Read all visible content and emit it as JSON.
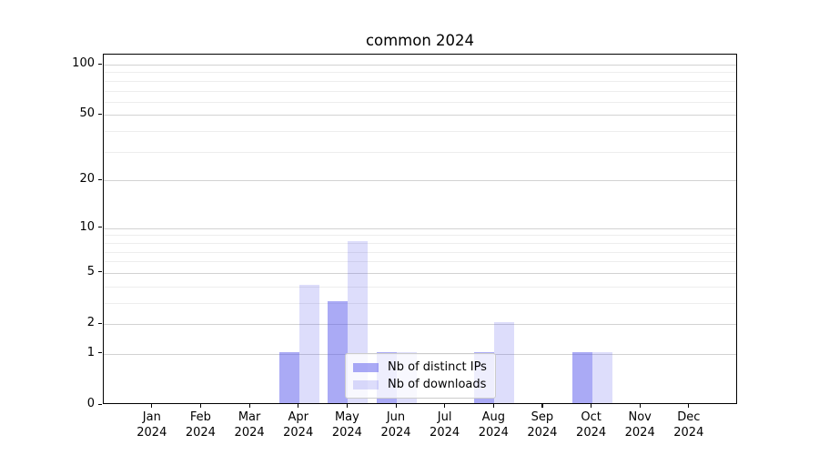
{
  "title": "common 2024",
  "chart_data": {
    "type": "bar",
    "title": "common 2024",
    "categories": [
      "Jan",
      "Feb",
      "Mar",
      "Apr",
      "May",
      "Jun",
      "Jul",
      "Aug",
      "Sep",
      "Oct",
      "Nov",
      "Dec"
    ],
    "x_year_label": "2024",
    "series": [
      {
        "name": "Nb of distinct IPs",
        "values": [
          0,
          0,
          0,
          1,
          3,
          1,
          0,
          1,
          0,
          1,
          0,
          0
        ],
        "color": "rgba(85,85,235,0.5)"
      },
      {
        "name": "Nb of downloads",
        "values": [
          0,
          0,
          0,
          4,
          8,
          1,
          0,
          2,
          0,
          1,
          0,
          0
        ],
        "color": "rgba(85,85,235,0.2)"
      }
    ],
    "xlabel": "",
    "ylabel": "",
    "yticks": [
      0,
      1,
      2,
      5,
      10,
      20,
      50,
      100
    ],
    "minor_yticks": [
      3,
      4,
      6,
      7,
      8,
      9,
      30,
      40,
      60,
      70,
      80,
      90
    ],
    "scale": "log1p",
    "ylim": [
      0,
      113
    ],
    "grid": "horizontal",
    "legend_position": "lower center"
  },
  "colors": {
    "bar_dark": "rgba(85,85,235,0.5)",
    "bar_light": "rgba(85,85,235,0.2)",
    "grid_major": "#d2d2d2",
    "grid_minor": "#ededed",
    "axis": "#000000",
    "legend_border": "#cccccc"
  }
}
